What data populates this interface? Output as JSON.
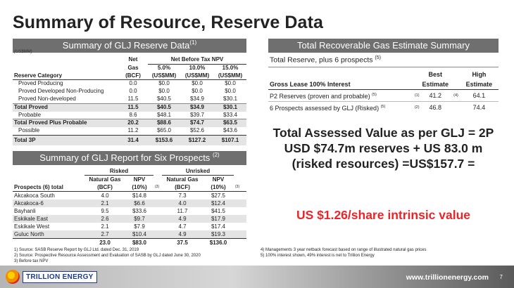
{
  "slide": {
    "title": "Summary of Resource, Reserve Data",
    "page_number": "7",
    "website": "www.trillionenergy.com",
    "logo_text": "TRILLION ENERGY"
  },
  "reserve_section": {
    "banner": "Summary of GLJ Reserve Data",
    "banner_sup": "(1)",
    "unit_note": "(US$MM)",
    "header": {
      "net": "Net",
      "net_before_tax_npv": "Net Before Tax NPV",
      "reserve_category": "Reserve Category",
      "gas": "Gas",
      "gas_unit": "(BCF)",
      "npv5": "5.0%",
      "npv10": "10.0%",
      "npv15": "15.0%",
      "unit": "(US$MM)"
    },
    "rows": [
      {
        "label": "Proved Producing",
        "gas": "0.0",
        "npv5": "$0.0",
        "npv10": "$0.0",
        "npv15": "$0.0"
      },
      {
        "label": "Proved Developed Non-Producing",
        "gas": "0.0",
        "npv5": "$0.0",
        "npv10": "$0.0",
        "npv15": "$0.0"
      },
      {
        "label": "Proved Non-developed",
        "gas": "11.5",
        "npv5": "$40.5",
        "npv10": "$34.9",
        "npv15": "$30.1"
      },
      {
        "label": "Total Proved",
        "gas": "11.5",
        "npv5": "$40.5",
        "npv10": "$34.9",
        "npv15": "$30.1"
      },
      {
        "label": "Probable",
        "gas": "8.6",
        "npv5": "$48.1",
        "npv10": "$39.7",
        "npv15": "$33.4"
      },
      {
        "label": "Total Proved Plus Probable",
        "gas": "20.2",
        "npv5": "$88.6",
        "npv10": "$74.7",
        "npv15": "$63.5"
      },
      {
        "label": "Possible",
        "gas": "11.2",
        "npv5": "$65.0",
        "npv10": "$52.6",
        "npv15": "$43.6"
      },
      {
        "label": "Total 3P",
        "gas": "31.4",
        "npv5": "$153.6",
        "npv10": "$127.2",
        "npv15": "$107.1"
      }
    ]
  },
  "prospect_section": {
    "banner": "Summary of GLJ Report for Six Prospects",
    "banner_sup": "(2)",
    "header": {
      "risked": "Risked",
      "unrisked": "Unrisked",
      "natural_gas": "Natural Gas",
      "npv": "NPV",
      "prospects": "Prospects (6) total",
      "bcf": "(BCF)",
      "pct": "(10%)",
      "sup3": "(3)"
    },
    "rows": [
      {
        "name": "Akcakoca South",
        "r_gas": "4.0",
        "r_npv": "$14.8",
        "u_gas": "7.3",
        "u_npv": "$27.5"
      },
      {
        "name": "Akcakoca-6",
        "r_gas": "2.1",
        "r_npv": "$6.6",
        "u_gas": "4.0",
        "u_npv": "$12.4"
      },
      {
        "name": "Bayhanli",
        "r_gas": "9.5",
        "r_npv": "$33.6",
        "u_gas": "11.7",
        "u_npv": "$41.5"
      },
      {
        "name": "Eskikale East",
        "r_gas": "2.6",
        "r_npv": "$9.7",
        "u_gas": "4.9",
        "u_npv": "$17.9"
      },
      {
        "name": "Eskikale West",
        "r_gas": "2.1",
        "r_npv": "$7.9",
        "u_gas": "4.7",
        "u_npv": "$17.4"
      },
      {
        "name": "Guluc North",
        "r_gas": "2.7",
        "r_npv": "$10.4",
        "u_gas": "4.9",
        "u_npv": "$19.3"
      }
    ],
    "total": {
      "r_gas": "23.0",
      "r_npv": "$83.0",
      "u_gas": "37.5",
      "u_npv": "$136.0"
    }
  },
  "recoverable_section": {
    "banner": "Total Recoverable Gas Estimate Summary",
    "subtitle": "Total Reserve, plus 6 prospects",
    "subtitle_sup": "(5)",
    "header": {
      "lease": "Gross Lease 100% Interest",
      "best": "Best",
      "high": "High",
      "estimate": "Estimate"
    },
    "rows": [
      {
        "label": "P2 Reserves (proven and probable)",
        "label_sup": "(5)",
        "sup_a": "(1)",
        "best": "41.2",
        "sup_b": "(4)",
        "high": "64.1"
      },
      {
        "label": "6 Prospects assessed by GLJ (Risked)",
        "label_sup": "(5)",
        "sup_a": "(2)",
        "best": "46.8",
        "sup_b": "",
        "high": "74.4"
      }
    ]
  },
  "callout": {
    "value_statement": "Total  Assessed Value as per GLJ = 2P USD $74.7m reserves + US 83.0 m (risked resources) =US$157.7 =",
    "per_share": "US $1.26/share intrinsic value"
  },
  "footnotes_left": [
    "1)   Source: SASB Reserve Report by GLJ Ltd. dated Dec. 31, 2019",
    "2)   Source: Prospective Resource Assessment and Evaluation of SASB by GLJ  dated June 30, 2020",
    "3)   Before tax NPV"
  ],
  "footnotes_right": [
    "4)    Managements 3 year netback forecast based on range of illustrated natural gas prices",
    "5)    100% interest shown, 49% interest is net to Trillion Energy"
  ]
}
